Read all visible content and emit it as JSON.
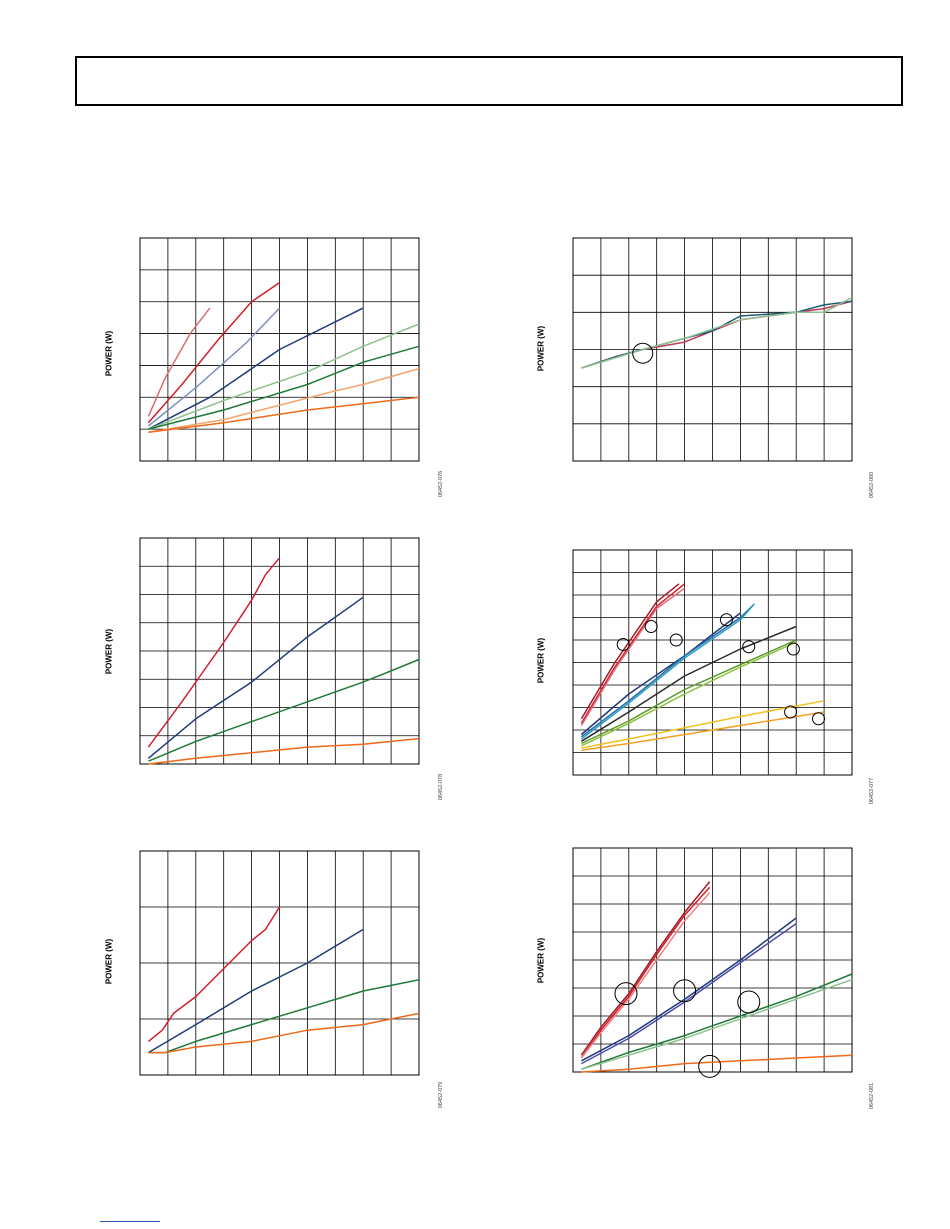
{
  "page": {
    "header_text": ""
  },
  "charts": [
    {
      "id": "c1",
      "ylabel": "POWER (W)",
      "fig_id": "06452-076",
      "chart_data": {
        "type": "line",
        "xlim": [
          0,
          10
        ],
        "ylim": [
          0,
          7
        ],
        "grid": true,
        "series": [
          {
            "color": "#e06a6a",
            "x": [
              0.3,
              0.9,
              1.8,
              2.5
            ],
            "y": [
              1.4,
              2.6,
              4.0,
              4.8
            ]
          },
          {
            "color": "#d21f2a",
            "x": [
              0.3,
              1.5,
              2.8,
              4.0,
              5.0
            ],
            "y": [
              1.2,
              2.4,
              3.8,
              5.0,
              5.6
            ]
          },
          {
            "color": "#7f8fbf",
            "x": [
              0.3,
              2.0,
              3.8,
              5.0
            ],
            "y": [
              1.1,
              2.3,
              3.7,
              4.8
            ]
          },
          {
            "color": "#1f3a7a",
            "x": [
              0.3,
              2.5,
              5.0,
              8.0
            ],
            "y": [
              1.0,
              2.0,
              3.5,
              4.8
            ]
          },
          {
            "color": "#8fc08f",
            "x": [
              0.3,
              3.0,
              6.0,
              8.0,
              10.0
            ],
            "y": [
              1.0,
              1.9,
              2.8,
              3.6,
              4.3
            ]
          },
          {
            "color": "#1f7a3a",
            "x": [
              0.3,
              3.0,
              6.0,
              8.0,
              10.0
            ],
            "y": [
              1.0,
              1.6,
              2.4,
              3.1,
              3.6
            ]
          },
          {
            "color": "#f5a56a",
            "x": [
              0.3,
              3.0,
              7.0,
              8.0,
              10.0
            ],
            "y": [
              0.9,
              1.3,
              2.2,
              2.4,
              2.9
            ]
          },
          {
            "color": "#ee6a1a",
            "x": [
              0.3,
              3.0,
              6.0,
              8.0,
              10.0
            ],
            "y": [
              0.9,
              1.2,
              1.6,
              1.8,
              2.0
            ]
          }
        ],
        "markers": []
      }
    },
    {
      "id": "c2",
      "ylabel": "POWER (W)",
      "fig_id": "06452-078",
      "chart_data": {
        "type": "line",
        "xlim": [
          0,
          10
        ],
        "ylim": [
          0,
          8
        ],
        "grid": true,
        "series": [
          {
            "color": "#d21f2a",
            "x": [
              0.3,
              1.5,
              3.0,
              4.0,
              4.5,
              5.0
            ],
            "y": [
              0.6,
              2.2,
              4.3,
              5.8,
              6.7,
              7.3
            ]
          },
          {
            "color": "#1f3a7a",
            "x": [
              0.3,
              2.0,
              4.0,
              6.0,
              8.0
            ],
            "y": [
              0.2,
              1.6,
              2.9,
              4.5,
              5.9
            ]
          },
          {
            "color": "#1f7a3a",
            "x": [
              0.3,
              2.0,
              4.0,
              6.0,
              8.0,
              10.0
            ],
            "y": [
              0.1,
              0.8,
              1.5,
              2.2,
              2.9,
              3.7
            ]
          },
          {
            "color": "#ee6a1a",
            "x": [
              0.3,
              2.0,
              4.0,
              6.0,
              8.0,
              10.0
            ],
            "y": [
              0.0,
              0.2,
              0.4,
              0.6,
              0.7,
              0.9
            ]
          }
        ],
        "markers": []
      }
    },
    {
      "id": "c3",
      "ylabel": "POWER (W)",
      "fig_id": "06452-079",
      "chart_data": {
        "type": "line",
        "xlim": [
          0,
          10
        ],
        "ylim": [
          0,
          4
        ],
        "grid": true,
        "series": [
          {
            "color": "#d21f2a",
            "x": [
              0.3,
              0.8,
              1.2,
              2.0,
              3.0,
              4.0,
              4.5,
              5.0
            ],
            "y": [
              0.6,
              0.8,
              1.1,
              1.4,
              1.9,
              2.4,
              2.6,
              3.0
            ]
          },
          {
            "color": "#1f3a7a",
            "x": [
              0.3,
              2.0,
              4.0,
              6.0,
              8.0
            ],
            "y": [
              0.4,
              0.9,
              1.5,
              2.0,
              2.6
            ]
          },
          {
            "color": "#1f7a3a",
            "x": [
              0.3,
              0.9,
              2.0,
              4.0,
              6.0,
              8.0,
              10.0
            ],
            "y": [
              0.4,
              0.4,
              0.6,
              0.9,
              1.2,
              1.5,
              1.7
            ]
          },
          {
            "color": "#ee6a1a",
            "x": [
              0.3,
              0.9,
              2.0,
              4.0,
              6.0,
              8.0,
              10.0
            ],
            "y": [
              0.4,
              0.4,
              0.5,
              0.6,
              0.8,
              0.9,
              1.1
            ]
          }
        ],
        "markers": []
      }
    },
    {
      "id": "c4",
      "ylabel": "POWER (W)",
      "fig_id": "06452-080",
      "chart_data": {
        "type": "line",
        "xlim": [
          0,
          10
        ],
        "ylim": [
          0,
          6
        ],
        "grid": true,
        "series": [
          {
            "color": "#c23a5a",
            "x": [
              0.3,
              1.5,
              2.5,
              4.0,
              5.0,
              6.0,
              8.0,
              9.0,
              10.0
            ],
            "y": [
              2.5,
              2.8,
              3.0,
              3.2,
              3.5,
              3.8,
              4.0,
              4.1,
              4.3
            ]
          },
          {
            "color": "#1f5a7a",
            "x": [
              0.3,
              1.5,
              2.5,
              4.0,
              5.0,
              6.0,
              8.0,
              9.0,
              10.0
            ],
            "y": [
              2.5,
              2.8,
              3.0,
              3.3,
              3.5,
              3.9,
              4.0,
              4.2,
              4.3
            ]
          },
          {
            "color": "#8fc08f",
            "x": [
              0.3,
              2.5,
              4.0,
              6.0,
              8.0,
              9.0,
              10.0
            ],
            "y": [
              2.5,
              3.0,
              3.3,
              3.8,
              4.0,
              4.0,
              4.4
            ]
          }
        ],
        "markers": [
          {
            "x": 2.5,
            "y": 2.9,
            "r": 10
          }
        ]
      }
    },
    {
      "id": "c5",
      "ylabel": "POWER (W)",
      "fig_id": "06452-077",
      "chart_data": {
        "type": "line",
        "xlim": [
          0,
          10
        ],
        "ylim": [
          0,
          10
        ],
        "grid": true,
        "series": [
          {
            "color": "#a01c2a",
            "x": [
              0.3,
              1.5,
              3.0,
              3.8
            ],
            "y": [
              2.5,
              5.0,
              7.7,
              8.5
            ]
          },
          {
            "color": "#d21f2a",
            "x": [
              0.3,
              1.5,
              3.0,
              4.0
            ],
            "y": [
              2.3,
              4.8,
              7.5,
              8.5
            ]
          },
          {
            "color": "#e06a7a",
            "x": [
              0.3,
              1.5,
              3.0,
              4.0
            ],
            "y": [
              2.2,
              4.7,
              7.4,
              8.3
            ]
          },
          {
            "color": "#1f3a7a",
            "x": [
              0.3,
              2.0,
              4.0,
              6.0
            ],
            "y": [
              1.8,
              3.6,
              5.3,
              7.2
            ]
          },
          {
            "color": "#2a6aa0",
            "x": [
              0.3,
              2.0,
              4.0,
              6.0,
              6.5
            ],
            "y": [
              1.7,
              3.3,
              5.3,
              7.0,
              7.6
            ]
          },
          {
            "color": "#2aa0c8",
            "x": [
              0.3,
              2.0,
              4.0,
              6.0,
              6.5
            ],
            "y": [
              1.6,
              3.2,
              5.2,
              6.9,
              7.6
            ]
          },
          {
            "color": "#2a2a2a",
            "x": [
              0.3,
              2.0,
              4.0,
              6.0,
              8.0
            ],
            "y": [
              1.5,
              2.8,
              4.4,
              5.6,
              6.6
            ]
          },
          {
            "color": "#5a9a2a",
            "x": [
              0.3,
              2.0,
              4.0,
              6.0,
              8.0
            ],
            "y": [
              1.4,
              2.4,
              3.8,
              4.9,
              6.0
            ]
          },
          {
            "color": "#8ac03a",
            "x": [
              0.3,
              2.0,
              4.0,
              6.0,
              8.0
            ],
            "y": [
              1.3,
              2.3,
              3.6,
              4.8,
              5.9
            ]
          },
          {
            "color": "#f0c020",
            "x": [
              0.3,
              2.0,
              4.0,
              6.0,
              9.0
            ],
            "y": [
              1.2,
              1.6,
              2.1,
              2.6,
              3.3
            ]
          },
          {
            "color": "#f5a020",
            "x": [
              0.3,
              2.0,
              4.0,
              6.0,
              9.0
            ],
            "y": [
              1.1,
              1.4,
              1.8,
              2.2,
              2.8
            ]
          }
        ],
        "markers": [
          {
            "x": 1.8,
            "y": 5.8,
            "r": 6
          },
          {
            "x": 2.8,
            "y": 6.6,
            "r": 6
          },
          {
            "x": 3.7,
            "y": 6.0,
            "r": 6
          },
          {
            "x": 5.5,
            "y": 6.9,
            "r": 6
          },
          {
            "x": 6.3,
            "y": 5.7,
            "r": 6
          },
          {
            "x": 7.9,
            "y": 5.6,
            "r": 6
          },
          {
            "x": 7.8,
            "y": 2.8,
            "r": 6
          },
          {
            "x": 8.8,
            "y": 2.5,
            "r": 6
          }
        ]
      }
    },
    {
      "id": "c6",
      "ylabel": "POWER (W)",
      "fig_id": "06452-081",
      "chart_data": {
        "type": "line",
        "xlim": [
          0,
          10
        ],
        "ylim": [
          0,
          8
        ],
        "grid": true,
        "series": [
          {
            "color": "#a01c2a",
            "x": [
              0.3,
              1.0,
              2.0,
              3.0,
              4.0,
              4.9
            ],
            "y": [
              0.6,
              1.6,
              2.8,
              4.3,
              5.7,
              6.8
            ]
          },
          {
            "color": "#d21f2a",
            "x": [
              0.3,
              1.0,
              2.0,
              3.0,
              4.0,
              4.9
            ],
            "y": [
              0.5,
              1.5,
              2.7,
              4.2,
              5.6,
              6.6
            ]
          },
          {
            "color": "#f08080",
            "x": [
              0.3,
              1.0,
              2.0,
              3.0,
              4.0,
              4.9
            ],
            "y": [
              0.5,
              1.4,
              2.6,
              4.0,
              5.4,
              6.4
            ]
          },
          {
            "color": "#1f3a7a",
            "x": [
              0.3,
              2.0,
              4.0,
              6.0,
              8.0
            ],
            "y": [
              0.4,
              1.3,
              2.6,
              4.0,
              5.5
            ]
          },
          {
            "color": "#4a4aaa",
            "x": [
              0.3,
              2.0,
              4.0,
              6.0,
              8.0
            ],
            "y": [
              0.3,
              1.2,
              2.5,
              3.9,
              5.3
            ]
          },
          {
            "color": "#1f7a3a",
            "x": [
              0.3,
              2.0,
              4.0,
              6.0,
              8.0,
              10.0
            ],
            "y": [
              0.1,
              0.7,
              1.3,
              2.0,
              2.7,
              3.5
            ]
          },
          {
            "color": "#8fc08f",
            "x": [
              0.3,
              2.0,
              4.0,
              6.0,
              8.0,
              10.0
            ],
            "y": [
              0.1,
              0.6,
              1.2,
              1.9,
              2.6,
              3.3
            ]
          },
          {
            "color": "#ee6a1a",
            "x": [
              0.3,
              2.0,
              4.0,
              6.0,
              8.0,
              10.0
            ],
            "y": [
              0.0,
              0.1,
              0.3,
              0.4,
              0.5,
              0.6
            ]
          }
        ],
        "markers": [
          {
            "x": 1.9,
            "y": 2.8,
            "r": 11
          },
          {
            "x": 4.0,
            "y": 2.9,
            "r": 11
          },
          {
            "x": 6.3,
            "y": 2.5,
            "r": 11
          },
          {
            "x": 4.9,
            "y": 0.2,
            "r": 11
          }
        ]
      }
    }
  ]
}
